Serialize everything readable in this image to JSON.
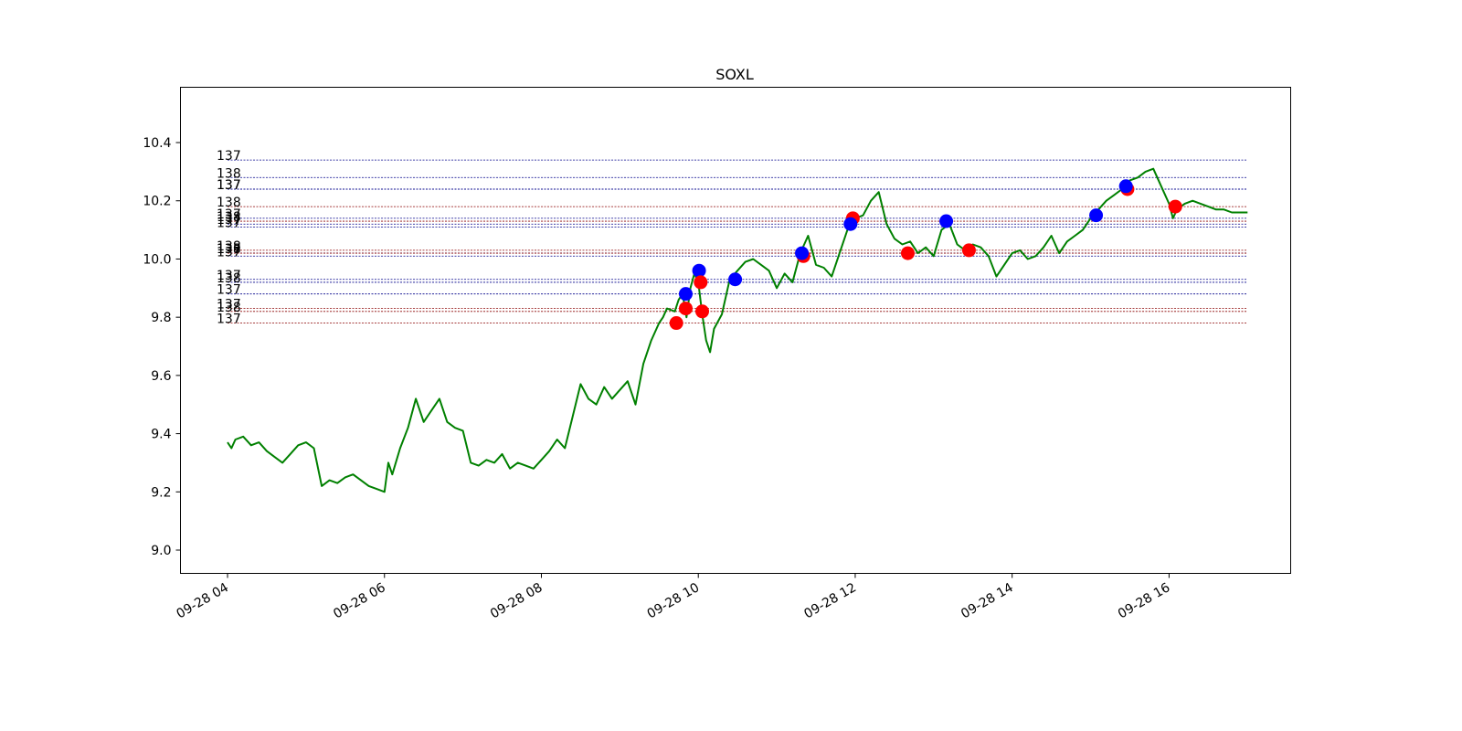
{
  "chart_data": {
    "type": "line",
    "title": "SOXL",
    "xlabel": "",
    "ylabel": "",
    "ylim": [
      8.92,
      10.59
    ],
    "yticks": [
      9.0,
      9.2,
      9.4,
      9.6,
      9.8,
      10.0,
      10.2,
      10.4
    ],
    "ytick_labels": [
      "9.0",
      "9.2",
      "9.4",
      "9.6",
      "9.8",
      "10.0",
      "10.2",
      "10.4"
    ],
    "xlim": [
      3.4,
      17.55
    ],
    "xticks": [
      4,
      6,
      8,
      10,
      12,
      14,
      16
    ],
    "xtick_labels": [
      "09-28 04",
      "09-28 06",
      "09-28 08",
      "09-28 10",
      "09-28 12",
      "09-28 14",
      "09-28 16"
    ],
    "x_unit": "hour of 09-28",
    "grid": false,
    "colors": {
      "price": "#008000",
      "buy": "#0000ff",
      "sell": "#ff0000",
      "level_blue": "#00008b",
      "level_red": "#8b0000"
    },
    "series": [
      {
        "color": "#008000",
        "x": [
          4.0,
          4.05,
          4.1,
          4.2,
          4.3,
          4.4,
          4.5,
          4.6,
          4.7,
          4.8,
          4.9,
          5.0,
          5.1,
          5.2,
          5.3,
          5.4,
          5.5,
          5.6,
          5.7,
          5.8,
          5.9,
          6.0,
          6.05,
          6.1,
          6.2,
          6.3,
          6.4,
          6.5,
          6.6,
          6.7,
          6.8,
          6.9,
          7.0,
          7.1,
          7.2,
          7.3,
          7.4,
          7.5,
          7.6,
          7.7,
          7.8,
          7.9,
          8.0,
          8.1,
          8.2,
          8.3,
          8.4,
          8.5,
          8.6,
          8.7,
          8.8,
          8.9,
          9.0,
          9.1,
          9.2,
          9.3,
          9.4,
          9.5,
          9.55,
          9.6,
          9.7,
          9.75,
          9.8,
          9.85,
          9.9,
          9.95,
          10.0,
          10.05,
          10.1,
          10.15,
          10.2,
          10.3,
          10.4,
          10.5,
          10.6,
          10.7,
          10.8,
          10.9,
          11.0,
          11.1,
          11.2,
          11.3,
          11.4,
          11.5,
          11.6,
          11.7,
          11.8,
          11.9,
          12.0,
          12.1,
          12.2,
          12.3,
          12.4,
          12.5,
          12.6,
          12.7,
          12.8,
          12.9,
          13.0,
          13.1,
          13.2,
          13.3,
          13.4,
          13.5,
          13.6,
          13.7,
          13.8,
          13.9,
          14.0,
          14.1,
          14.2,
          14.3,
          14.4,
          14.5,
          14.6,
          14.7,
          14.8,
          14.9,
          15.0,
          15.1,
          15.2,
          15.3,
          15.4,
          15.5,
          15.6,
          15.7,
          15.8,
          15.9,
          16.0,
          16.05,
          16.1,
          16.2,
          16.3,
          16.4,
          16.5,
          16.6,
          16.7,
          16.8,
          16.9,
          17.0
        ],
        "y": [
          9.37,
          9.35,
          9.38,
          9.39,
          9.36,
          9.37,
          9.34,
          9.32,
          9.3,
          9.33,
          9.36,
          9.37,
          9.35,
          9.22,
          9.24,
          9.23,
          9.25,
          9.26,
          9.24,
          9.22,
          9.21,
          9.2,
          9.3,
          9.26,
          9.35,
          9.42,
          9.52,
          9.44,
          9.48,
          9.52,
          9.44,
          9.42,
          9.41,
          9.3,
          9.29,
          9.31,
          9.3,
          9.33,
          9.28,
          9.3,
          9.29,
          9.28,
          9.31,
          9.34,
          9.38,
          9.35,
          9.46,
          9.57,
          9.52,
          9.5,
          9.56,
          9.52,
          9.55,
          9.58,
          9.5,
          9.64,
          9.72,
          9.78,
          9.8,
          9.83,
          9.82,
          9.86,
          9.88,
          9.8,
          9.9,
          9.95,
          9.92,
          9.81,
          9.72,
          9.68,
          9.76,
          9.81,
          9.93,
          9.96,
          9.99,
          10.0,
          9.98,
          9.96,
          9.9,
          9.95,
          9.92,
          10.02,
          10.08,
          9.98,
          9.97,
          9.94,
          10.02,
          10.1,
          10.14,
          10.15,
          10.2,
          10.23,
          10.12,
          10.07,
          10.05,
          10.06,
          10.02,
          10.04,
          10.01,
          10.1,
          10.12,
          10.05,
          10.03,
          10.05,
          10.04,
          10.01,
          9.94,
          9.98,
          10.02,
          10.03,
          10.0,
          10.01,
          10.04,
          10.08,
          10.02,
          10.06,
          10.08,
          10.1,
          10.14,
          10.17,
          10.2,
          10.22,
          10.24,
          10.27,
          10.28,
          10.3,
          10.31,
          10.25,
          10.19,
          10.14,
          10.17,
          10.19,
          10.2,
          10.19,
          10.18,
          10.17,
          10.17,
          10.16,
          10.16,
          10.16
        ]
      }
    ],
    "levels": [
      {
        "y": 10.34,
        "label": "137",
        "color": "#00008b"
      },
      {
        "y": 10.28,
        "label": "138",
        "color": "#00008b"
      },
      {
        "y": 10.24,
        "label": "137",
        "color": "#00008b"
      },
      {
        "y": 10.24,
        "label": "137",
        "color": "#00008b"
      },
      {
        "y": 10.18,
        "label": "138",
        "color": "#8b0000"
      },
      {
        "y": 10.14,
        "label": "137",
        "color": "#00008b"
      },
      {
        "y": 10.13,
        "label": "138",
        "color": "#8b0000"
      },
      {
        "y": 10.12,
        "label": "137",
        "color": "#00008b"
      },
      {
        "y": 10.11,
        "label": "137",
        "color": "#00008b"
      },
      {
        "y": 10.03,
        "label": "138",
        "color": "#8b0000"
      },
      {
        "y": 10.02,
        "label": "138",
        "color": "#00008b"
      },
      {
        "y": 10.02,
        "label": "137",
        "color": "#8b0000"
      },
      {
        "y": 10.01,
        "label": "137",
        "color": "#00008b"
      },
      {
        "y": 9.93,
        "label": "137",
        "color": "#00008b"
      },
      {
        "y": 9.92,
        "label": "138",
        "color": "#00008b"
      },
      {
        "y": 9.88,
        "label": "137",
        "color": "#00008b"
      },
      {
        "y": 9.83,
        "label": "137",
        "color": "#8b0000"
      },
      {
        "y": 9.82,
        "label": "138",
        "color": "#8b0000"
      },
      {
        "y": 9.78,
        "label": "137",
        "color": "#8b0000"
      }
    ],
    "levels_x_range": [
      4.0,
      17.0
    ],
    "markers": [
      {
        "x": 9.72,
        "y": 9.78,
        "kind": "sell"
      },
      {
        "x": 9.84,
        "y": 9.83,
        "kind": "sell"
      },
      {
        "x": 9.84,
        "y": 9.88,
        "kind": "buy"
      },
      {
        "x": 10.01,
        "y": 9.96,
        "kind": "buy"
      },
      {
        "x": 10.03,
        "y": 9.92,
        "kind": "sell"
      },
      {
        "x": 10.05,
        "y": 9.82,
        "kind": "sell"
      },
      {
        "x": 10.47,
        "y": 9.93,
        "kind": "buy"
      },
      {
        "x": 11.34,
        "y": 10.01,
        "kind": "sell"
      },
      {
        "x": 11.32,
        "y": 10.02,
        "kind": "buy"
      },
      {
        "x": 11.97,
        "y": 10.14,
        "kind": "sell"
      },
      {
        "x": 11.94,
        "y": 10.12,
        "kind": "buy"
      },
      {
        "x": 12.67,
        "y": 10.02,
        "kind": "sell"
      },
      {
        "x": 13.16,
        "y": 10.13,
        "kind": "buy"
      },
      {
        "x": 13.45,
        "y": 10.03,
        "kind": "sell"
      },
      {
        "x": 15.07,
        "y": 10.15,
        "kind": "buy"
      },
      {
        "x": 15.47,
        "y": 10.24,
        "kind": "sell"
      },
      {
        "x": 15.45,
        "y": 10.25,
        "kind": "buy"
      },
      {
        "x": 16.08,
        "y": 10.18,
        "kind": "sell"
      }
    ]
  }
}
